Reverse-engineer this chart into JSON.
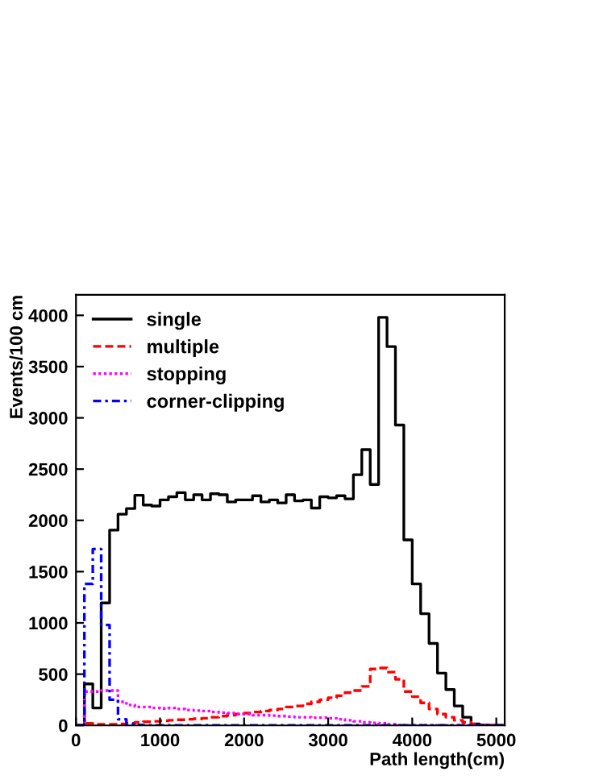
{
  "chart_data": {
    "type": "histogram",
    "xlabel": "Path length(cm)",
    "ylabel": "Events/100 cm",
    "bins": [
      0,
      100,
      200,
      300,
      400,
      500,
      600,
      700,
      800,
      900,
      1000,
      1100,
      1200,
      1300,
      1400,
      1500,
      1600,
      1700,
      1800,
      1900,
      2000,
      2100,
      2200,
      2300,
      2400,
      2500,
      2600,
      2700,
      2800,
      2900,
      3000,
      3100,
      3200,
      3300,
      3400,
      3500,
      3600,
      3700,
      3800,
      3900,
      4000,
      4100,
      4200,
      4300,
      4400,
      4500,
      4600,
      4700,
      4800,
      4900,
      5000,
      5100
    ],
    "series": [
      {
        "name": "single",
        "color": "#000000",
        "line_style": "solid",
        "values": [
          0,
          405,
          170,
          1195,
          1905,
          2060,
          2115,
          2245,
          2150,
          2140,
          2200,
          2230,
          2270,
          2200,
          2250,
          2200,
          2260,
          2250,
          2180,
          2200,
          2200,
          2240,
          2180,
          2200,
          2170,
          2250,
          2190,
          2200,
          2120,
          2230,
          2220,
          2240,
          2210,
          2445,
          2690,
          2350,
          3980,
          3695,
          2930,
          1810,
          1380,
          1090,
          800,
          510,
          350,
          190,
          80,
          15,
          5,
          0,
          0
        ]
      },
      {
        "name": "multiple",
        "color": "#ff0000",
        "line_style": "dashed",
        "values": [
          0,
          20,
          10,
          10,
          10,
          15,
          20,
          30,
          35,
          40,
          45,
          50,
          55,
          60,
          65,
          70,
          80,
          90,
          100,
          110,
          120,
          130,
          140,
          150,
          160,
          180,
          190,
          210,
          230,
          250,
          270,
          290,
          320,
          340,
          380,
          550,
          560,
          520,
          450,
          330,
          280,
          220,
          160,
          110,
          80,
          50,
          30,
          10,
          0,
          0,
          0
        ]
      },
      {
        "name": "stopping",
        "color": "#ff00ff",
        "line_style": "dotted",
        "values": [
          0,
          330,
          330,
          340,
          340,
          230,
          200,
          180,
          180,
          170,
          165,
          170,
          160,
          150,
          145,
          140,
          130,
          125,
          120,
          110,
          110,
          100,
          100,
          95,
          90,
          85,
          80,
          80,
          75,
          75,
          70,
          60,
          50,
          40,
          30,
          25,
          20,
          10,
          5,
          0,
          0,
          0,
          0,
          0,
          0,
          0,
          0,
          0,
          0,
          0,
          0
        ]
      },
      {
        "name": "corner-clipping",
        "color": "#0000ff",
        "line_style": "dashdot",
        "values": [
          0,
          1380,
          1720,
          980,
          250,
          60,
          15,
          5,
          0,
          0,
          0,
          0,
          0,
          0,
          0,
          0,
          0,
          0,
          0,
          0,
          0,
          0,
          0,
          0,
          0,
          0,
          0,
          0,
          0,
          0,
          0,
          0,
          0,
          0,
          0,
          0,
          0,
          0,
          0,
          0,
          0,
          0,
          0,
          0,
          0,
          0,
          0,
          0,
          0,
          0,
          0
        ]
      }
    ],
    "xlim": [
      0,
      5100
    ],
    "ylim": [
      0,
      4200
    ],
    "xticks": [
      0,
      1000,
      2000,
      3000,
      4000,
      5000
    ],
    "yticks": [
      0,
      500,
      1000,
      1500,
      2000,
      2500,
      3000,
      3500,
      4000
    ],
    "grid": false,
    "legend": "top left"
  }
}
